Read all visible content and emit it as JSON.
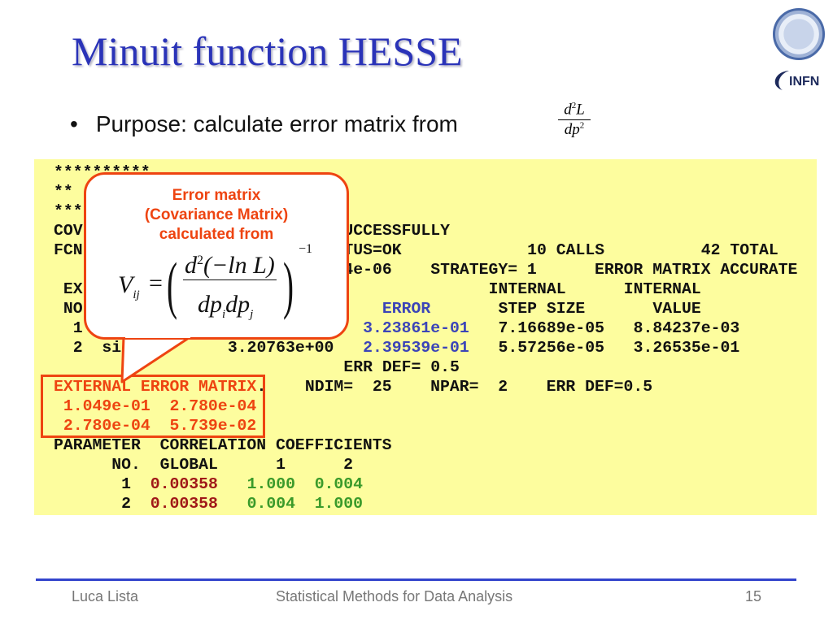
{
  "slide": {
    "title": "Minuit function HESSE",
    "bullet": "Purpose: calculate error matrix from",
    "bullet_formula": {
      "numerator": "d",
      "numerator_sup": "2",
      "numerator_tail": "L",
      "denominator": "dp",
      "denominator_sup": "2"
    },
    "logos": {
      "university_seal": "university-seal",
      "infn": "INFN"
    }
  },
  "code_lines": [
    [
      {
        "t": "**********"
      }
    ],
    [
      {
        "t": "**"
      }
    ],
    [
      {
        "t": "***"
      }
    ],
    [
      {
        "t": "COV"
      },
      {
        "t": "                           UCCESSFULLY"
      }
    ],
    [
      {
        "t": "FCN"
      },
      {
        "t": "                           TUS=OK"
      },
      {
        "t": "             10 CALLS          42 TOTAL"
      }
    ],
    [
      {
        "t": "                              4e-06    STRATEGY= 1      ERROR MATRIX ACCURATE"
      }
    ],
    [
      {
        "t": " EX"
      },
      {
        "t": "                                          INTERNAL      INTERNAL"
      }
    ],
    [
      {
        "t": " NO"
      },
      {
        "t": "                               "
      },
      {
        "t": "ERROR",
        "c": "c-blue"
      },
      {
        "t": "       STEP SIZE       VALUE"
      }
    ],
    [
      {
        "t": "  1"
      },
      {
        "t": "                             "
      },
      {
        "t": "3.23861e-01",
        "c": "c-blue"
      },
      {
        "t": "   7.16689e-05   8.84237e-03"
      }
    ],
    [
      {
        "t": "  2  sig"
      },
      {
        "t": "          3.20763e+00   "
      },
      {
        "t": "2.39539e-01",
        "c": "c-blue"
      },
      {
        "t": "   5.57256e-05   3.26535e-01"
      }
    ],
    [
      {
        "t": "                              ERR DEF= 0.5"
      }
    ],
    [
      {
        "t": "EXTERNAL ERROR MATRIX",
        "c": "c-red"
      },
      {
        "t": ".    NDIM=  25    NPAR=  2    ERR DEF=0.5"
      }
    ],
    [
      {
        "t": " 1.049e-01  2.780e-04",
        "c": "c-red"
      }
    ],
    [
      {
        "t": " 2.780e-04  5.739e-02",
        "c": "c-red"
      }
    ],
    [
      {
        "t": "PARAMETER  CORRELATION COEFFICIENTS"
      }
    ],
    [
      {
        "t": "      NO.  GLOBAL      1      2"
      }
    ],
    [
      {
        "t": "       1  "
      },
      {
        "t": "0.00358",
        "c": "c-dred"
      },
      {
        "t": "   "
      },
      {
        "t": "1.000  0.004",
        "c": "c-green"
      }
    ],
    [
      {
        "t": "       2  "
      },
      {
        "t": "0.00358",
        "c": "c-dred"
      },
      {
        "t": "   "
      },
      {
        "t": "0.004  1.000",
        "c": "c-green"
      }
    ]
  ],
  "callout": {
    "lines": [
      "Error matrix",
      "(Covariance Matrix)",
      "calculated from"
    ],
    "formula": {
      "lhs": "V",
      "lhs_sub": "ij",
      "eq": "=",
      "num": "d",
      "num_sup": "2",
      "num_tail": "(−ln L)",
      "den": "dp",
      "den_sub1": "i",
      "den_mid": "dp",
      "den_sub2": "j",
      "exponent": "−1"
    }
  },
  "footer": {
    "author": "Luca Lista",
    "course": "Statistical Methods for Data Analysis",
    "page": "15"
  },
  "colors": {
    "title": "#2a33b8",
    "code_bg": "#fdfd9e",
    "callout": "#ee4411",
    "error_col": "#3b44b8",
    "global_corr": "#a01818",
    "corr": "#3a9a2a",
    "footer_rule": "#3344cc"
  }
}
